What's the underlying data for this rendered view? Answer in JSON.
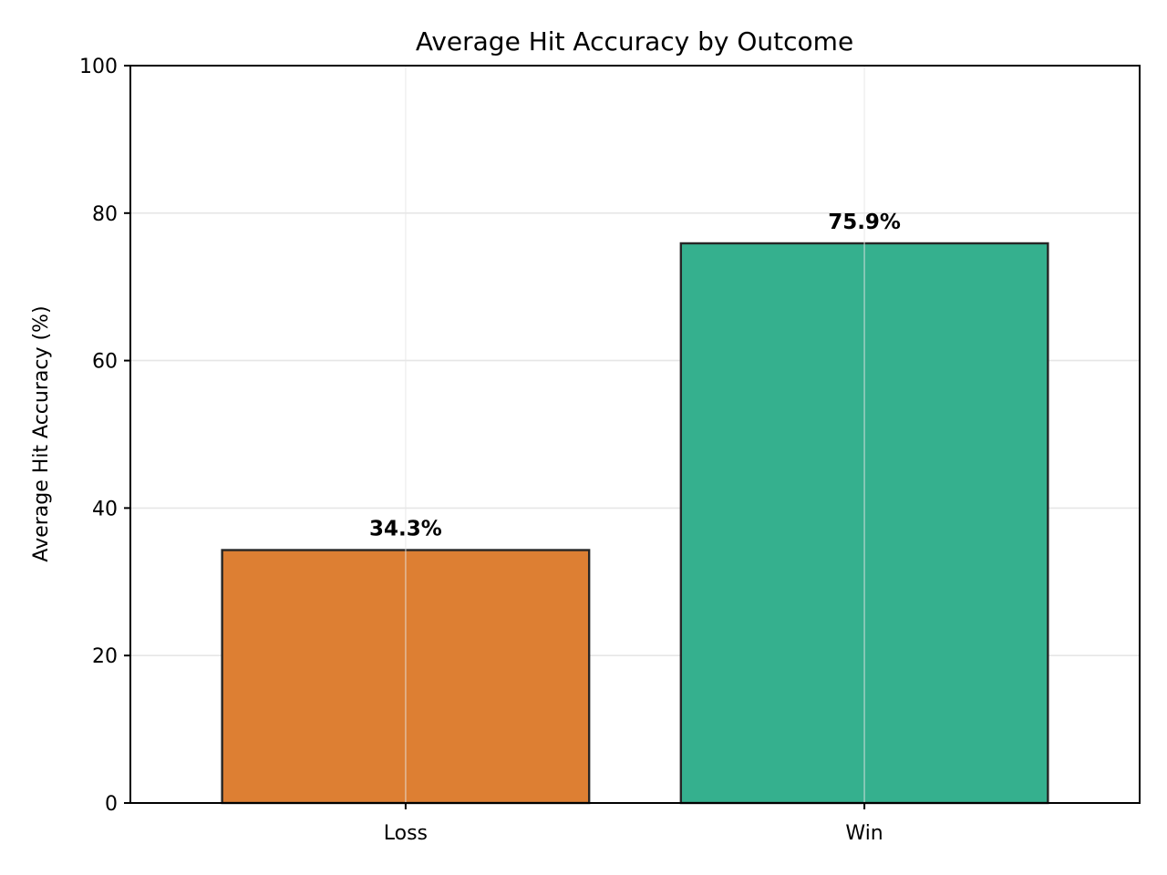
{
  "chart_data": {
    "type": "bar",
    "title": "Average Hit Accuracy by Outcome",
    "xlabel": "",
    "ylabel": "Average Hit Accuracy (%)",
    "categories": [
      "Loss",
      "Win"
    ],
    "values": [
      34.3,
      75.9
    ],
    "data_labels": [
      "34.3%",
      "75.9%"
    ],
    "colors": [
      "#dd7f33",
      "#35b08e"
    ],
    "edge_color": "#262626",
    "ylim": [
      0,
      100
    ],
    "yticks": [
      0,
      20,
      40,
      60,
      80,
      100
    ],
    "grid": true,
    "legend": "none"
  }
}
